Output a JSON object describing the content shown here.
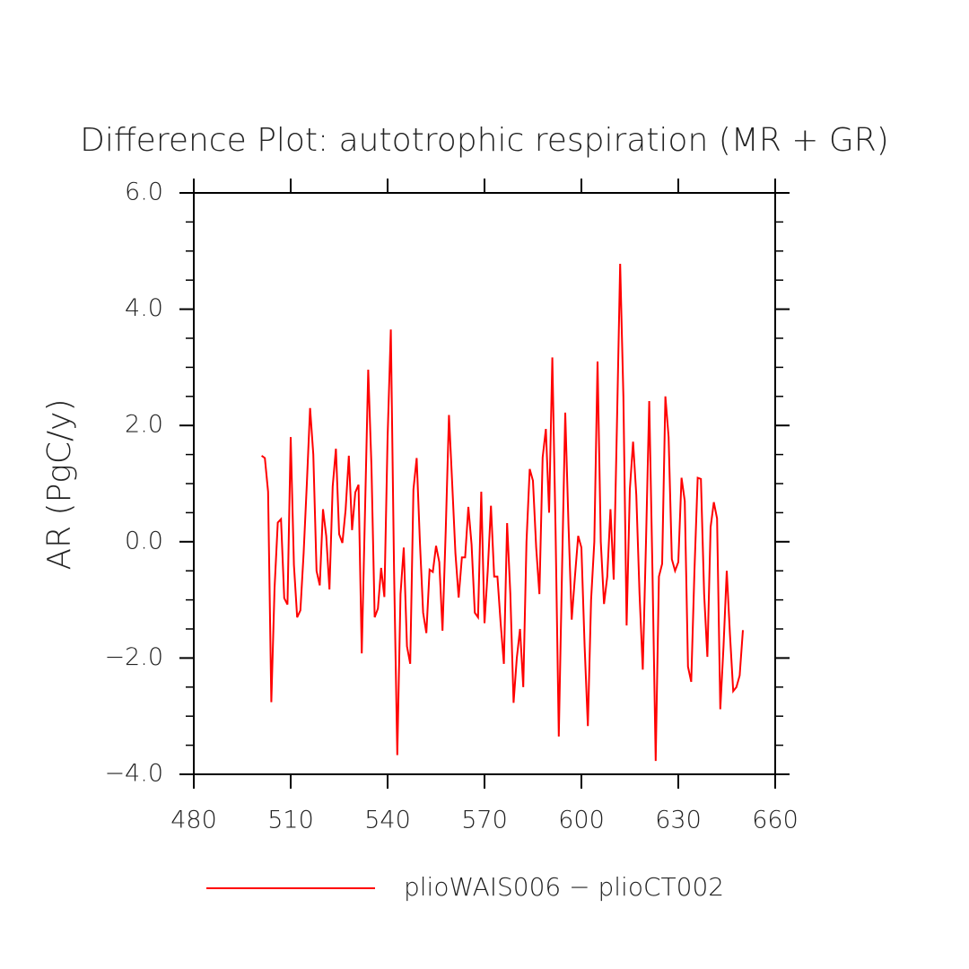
{
  "chart_data": {
    "type": "line",
    "title": "Difference Plot: autotrophic respiration (MR + GR)",
    "ylabel": "AR  (PgC/y)",
    "x": [
      501,
      502,
      503,
      504,
      505,
      506,
      507,
      508,
      509,
      510,
      511,
      512,
      513,
      514,
      515,
      516,
      517,
      518,
      519,
      520,
      521,
      522,
      523,
      524,
      525,
      526,
      527,
      528,
      529,
      530,
      531,
      532,
      533,
      534,
      535,
      536,
      537,
      538,
      539,
      540,
      541,
      542,
      543,
      544,
      545,
      546,
      547,
      548,
      549,
      550,
      551,
      552,
      553,
      554,
      555,
      556,
      557,
      558,
      559,
      560,
      561,
      562,
      563,
      564,
      565,
      566,
      567,
      568,
      569,
      570,
      571,
      572,
      573,
      574,
      575,
      576,
      577,
      578,
      579,
      580,
      581,
      582,
      583,
      584,
      585,
      586,
      587,
      588,
      589,
      590,
      591,
      592,
      593,
      594,
      595,
      596,
      597,
      598,
      599,
      600,
      601,
      602,
      603,
      604,
      605,
      606,
      607,
      608,
      609,
      610,
      611,
      612,
      613,
      614,
      615,
      616,
      617,
      618,
      619,
      620,
      621,
      622,
      623,
      624,
      625,
      626,
      627,
      628,
      629,
      630,
      631,
      632,
      633,
      634,
      635,
      636,
      637,
      638,
      639,
      640,
      641,
      642,
      643,
      644,
      645,
      646,
      647,
      648,
      649,
      650
    ],
    "series": [
      {
        "name": "plioWAIS006 − plioCT002",
        "color": "#ff0000",
        "values": [
          1.48,
          1.44,
          0.86,
          -2.76,
          -0.8,
          0.33,
          0.39,
          -0.97,
          -1.08,
          1.8,
          -0.4,
          -1.3,
          -1.18,
          -0.2,
          1.0,
          2.3,
          1.5,
          -0.5,
          -0.75,
          0.56,
          0.1,
          -0.82,
          0.95,
          1.6,
          0.13,
          -0.02,
          0.55,
          1.48,
          0.2,
          0.85,
          0.98,
          -1.92,
          0.5,
          2.96,
          1.3,
          -1.3,
          -1.15,
          -0.45,
          -0.95,
          1.8,
          3.65,
          -0.5,
          -3.67,
          -0.9,
          -0.1,
          -1.8,
          -2.1,
          0.9,
          1.44,
          0.0,
          -1.22,
          -1.57,
          -0.48,
          -0.52,
          -0.07,
          -0.35,
          -1.53,
          0.2,
          2.18,
          1.0,
          -0.2,
          -0.96,
          -0.27,
          -0.27,
          0.6,
          -0.05,
          -1.22,
          -1.3,
          0.86,
          -1.4,
          -0.5,
          0.62,
          -0.6,
          -0.6,
          -1.4,
          -2.1,
          0.32,
          -0.9,
          -2.77,
          -2.0,
          -1.5,
          -2.5,
          0.0,
          1.25,
          1.05,
          -0.1,
          -0.9,
          1.45,
          1.94,
          0.5,
          3.17,
          0.2,
          -3.35,
          -0.5,
          2.22,
          0.3,
          -1.34,
          -0.6,
          0.1,
          -0.1,
          -1.8,
          -3.17,
          -1.0,
          0.0,
          3.1,
          0.0,
          -1.07,
          -0.6,
          0.56,
          -0.65,
          2.0,
          4.78,
          2.5,
          -1.44,
          0.9,
          1.72,
          0.8,
          -0.9,
          -2.2,
          0.0,
          2.42,
          -0.5,
          -3.77,
          -0.6,
          -0.38,
          2.5,
          1.8,
          -0.3,
          -0.5,
          -0.35,
          1.1,
          0.7,
          -2.15,
          -2.41,
          -0.5,
          1.1,
          1.08,
          -0.9,
          -1.98,
          0.25,
          0.68,
          0.4,
          -2.88,
          -1.8,
          -0.5,
          -1.6,
          -2.57,
          -2.5,
          -2.3,
          -1.52
        ]
      }
    ],
    "xlim": [
      480,
      660
    ],
    "xticks": [
      480,
      510,
      540,
      570,
      600,
      630,
      660
    ],
    "ylim": [
      -4,
      6
    ],
    "yticks": [
      {
        "value": -4,
        "label": "−4.0"
      },
      {
        "value": -2,
        "label": "−2.0"
      },
      {
        "value": 0,
        "label": "0.0"
      },
      {
        "value": 2,
        "label": "2.0"
      },
      {
        "value": 4,
        "label": "4.0"
      },
      {
        "value": 6,
        "label": "6.0"
      }
    ],
    "yminorticks": [
      -3.5,
      -3,
      -2.5,
      -1.5,
      -1,
      -0.5,
      0.5,
      1,
      1.5,
      2.5,
      3,
      3.5,
      4.5,
      5,
      5.5
    ],
    "legend": "bottom"
  }
}
